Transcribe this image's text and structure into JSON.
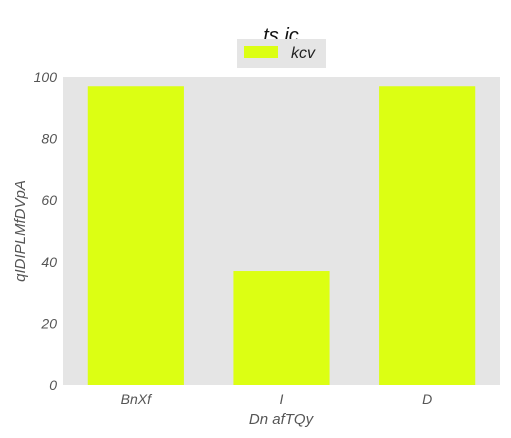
{
  "chart_data": {
    "type": "bar",
    "title": "ts ic",
    "xlabel": "Dn  afTQy",
    "ylabel": "qIDIPLMfDVpA",
    "categories": [
      "BnXf",
      "I",
      "D"
    ],
    "series": [
      {
        "name": "kcv",
        "values": [
          97,
          37,
          97
        ],
        "color": "#dcff13"
      }
    ],
    "ylim": [
      0,
      100
    ],
    "yticks": [
      0,
      20,
      40,
      60,
      80,
      100
    ],
    "grid": false,
    "legend": "top-center",
    "background": "#e5e5e5"
  }
}
